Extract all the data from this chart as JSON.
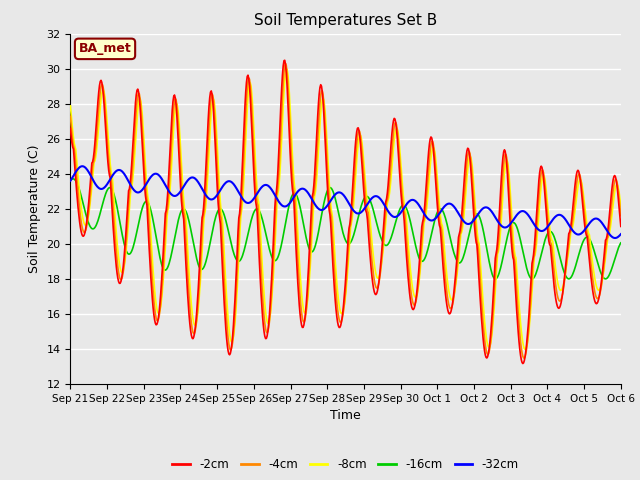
{
  "title": "Soil Temperatures Set B",
  "xlabel": "Time",
  "ylabel": "Soil Temperature (C)",
  "ylim": [
    12,
    32
  ],
  "yticks": [
    12,
    14,
    16,
    18,
    20,
    22,
    24,
    26,
    28,
    30,
    32
  ],
  "background_color": "#e8e8e8",
  "plot_bg_color": "#e8e8e8",
  "grid_color": "white",
  "annotation_text": "BA_met",
  "annotation_bg": "#ffffcc",
  "annotation_border": "#8B0000",
  "annotation_text_color": "#8B0000",
  "line_colors": {
    "-2cm": "#ff0000",
    "-4cm": "#ff8800",
    "-8cm": "#ffff00",
    "-16cm": "#00cc00",
    "-32cm": "#0000ff"
  },
  "tick_labels": [
    "Sep 21",
    "Sep 22",
    "Sep 23",
    "Sep 24",
    "Sep 25",
    "Sep 26",
    "Sep 27",
    "Sep 28",
    "Sep 29",
    "Sep 30",
    "Oct 1",
    "Oct 2",
    "Oct 3",
    "Oct 4",
    "Oct 5",
    "Oct 6"
  ]
}
